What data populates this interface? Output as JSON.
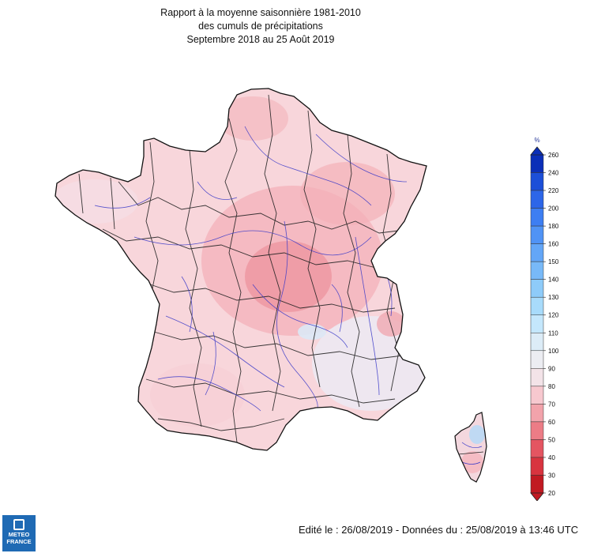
{
  "title": {
    "line1": "Rapport à la moyenne saisonnière 1981-2010",
    "line2": "des cumuls de précipitations",
    "line3": "Septembre 2018 au 25 Août 2019"
  },
  "legend": {
    "unit": "%",
    "ticks": [
      260,
      240,
      220,
      200,
      180,
      160,
      150,
      140,
      130,
      120,
      110,
      100,
      90,
      80,
      70,
      60,
      50,
      40,
      30,
      20
    ],
    "colors": [
      "#0b2fb8",
      "#1c4fd8",
      "#2d66e8",
      "#3d7ef2",
      "#5093f5",
      "#63a6f7",
      "#78b9f8",
      "#8ecbf9",
      "#a8dbfb",
      "#c4e7fc",
      "#dcecf7",
      "#ecedf2",
      "#f3e3e8",
      "#f7c8cf",
      "#f2a3ab",
      "#ec7c86",
      "#e45561",
      "#d8343f",
      "#c11a22"
    ]
  },
  "logo": {
    "line1": "METEO",
    "line2": "FRANCE"
  },
  "footer": "Edité le : 26/08/2019 - Données du : 25/08/2019 à 13:46 UTC",
  "map": {
    "main_region": "France métropolitaine",
    "island": "Corse"
  }
}
